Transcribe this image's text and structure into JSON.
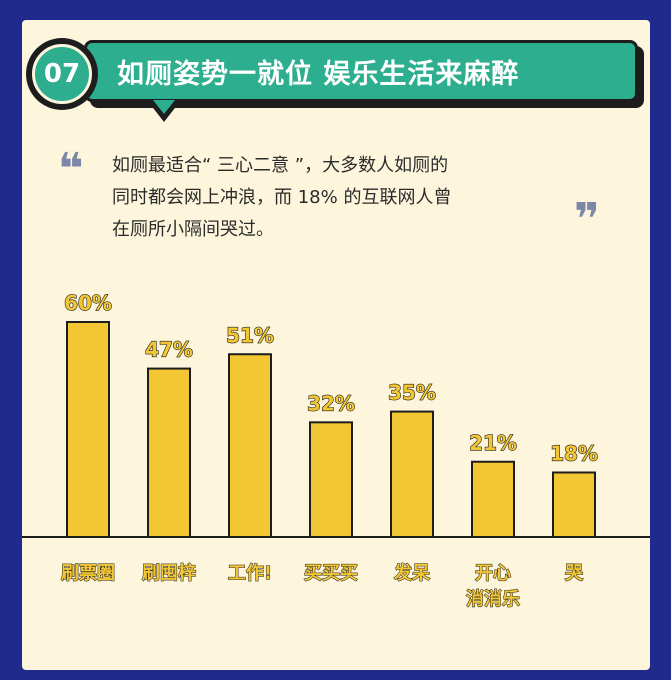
{
  "header": {
    "number": "07",
    "title": "如厕姿势一就位 娱乐生活来麻醉"
  },
  "quote": {
    "open_mark": "❝",
    "close_mark": "❞",
    "lines": [
      "如厕最适合“ 三心二意 ”，大多数人如厕的",
      "同时都会网上冲浪，而 18% 的互联网人曾",
      "在厕所小隔间哭过。"
    ]
  },
  "colors": {
    "background": "#1f2a8c",
    "card": "#fdf6dd",
    "accent": "#2cae8f",
    "bar_fill": "#f3c733",
    "outline": "#1d1d1d"
  },
  "chart_data": {
    "type": "bar",
    "categories": [
      "刷票圈",
      "刷囤梓",
      "工作!",
      "买买买",
      "发呆",
      "开心消消乐",
      "哭"
    ],
    "category_lines": [
      [
        "刷票圈"
      ],
      [
        "刷囤梓"
      ],
      [
        "工作!"
      ],
      [
        "买买买"
      ],
      [
        "发呆"
      ],
      [
        "开心",
        "消消乐"
      ],
      [
        "哭"
      ]
    ],
    "values": [
      60,
      47,
      51,
      32,
      35,
      21,
      18
    ],
    "value_labels": [
      "60%",
      "47%",
      "51%",
      "32%",
      "35%",
      "21%",
      "18%"
    ],
    "ylim": [
      0,
      60
    ],
    "grid": false,
    "legend": false
  }
}
